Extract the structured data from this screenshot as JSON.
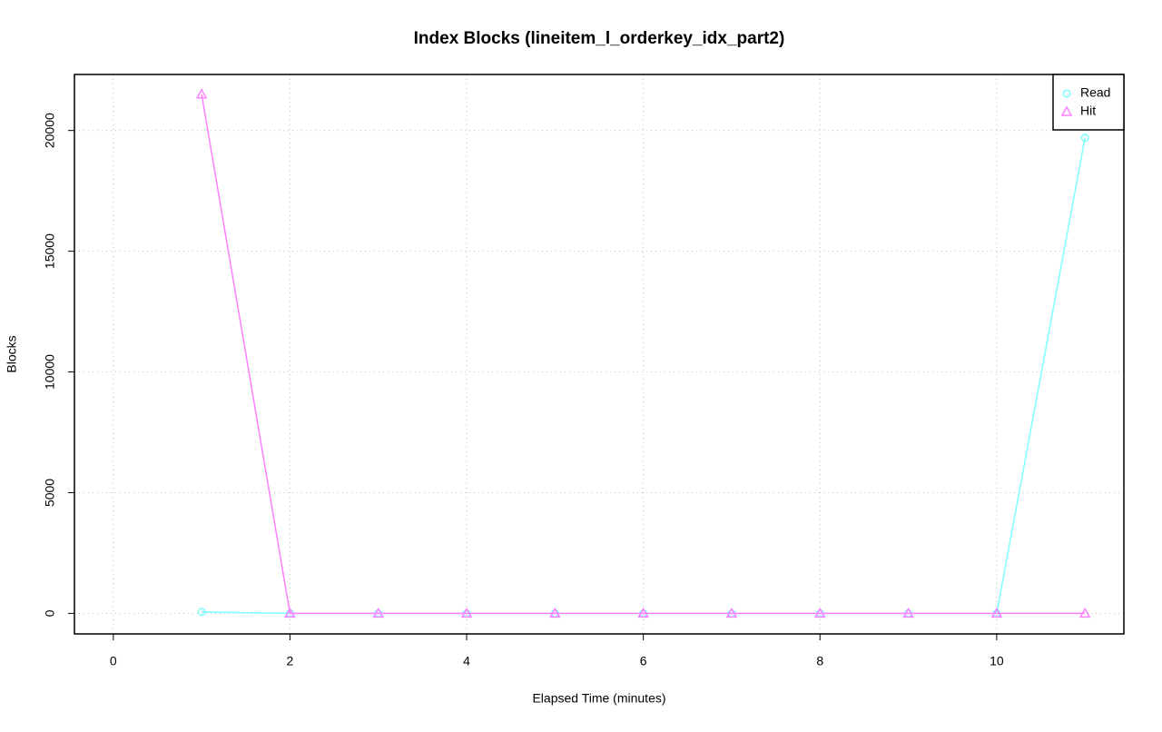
{
  "chart_data": {
    "type": "line",
    "title": "Index Blocks (lineitem_l_orderkey_idx_part2)",
    "x_label": "Elapsed Time (minutes)",
    "y_label": "Blocks",
    "x": [
      1,
      2,
      3,
      4,
      5,
      6,
      7,
      8,
      9,
      10,
      11
    ],
    "series": [
      {
        "name": "Read",
        "color": "#7fffff",
        "marker": "circle",
        "values": [
          60,
          0,
          0,
          0,
          0,
          0,
          0,
          0,
          0,
          0,
          19700
        ]
      },
      {
        "name": "Hit",
        "color": "#ff80ff",
        "marker": "triangle",
        "values": [
          21500,
          0,
          0,
          0,
          0,
          0,
          0,
          0,
          0,
          0,
          0
        ]
      }
    ],
    "xlim": [
      -0.44,
      11.44
    ],
    "xticks": [
      0,
      2,
      4,
      6,
      8,
      10
    ],
    "ylim": [
      -850,
      22320
    ],
    "yticks": [
      0,
      5000,
      10000,
      15000,
      20000
    ],
    "grid": true,
    "legend": "top-right"
  }
}
